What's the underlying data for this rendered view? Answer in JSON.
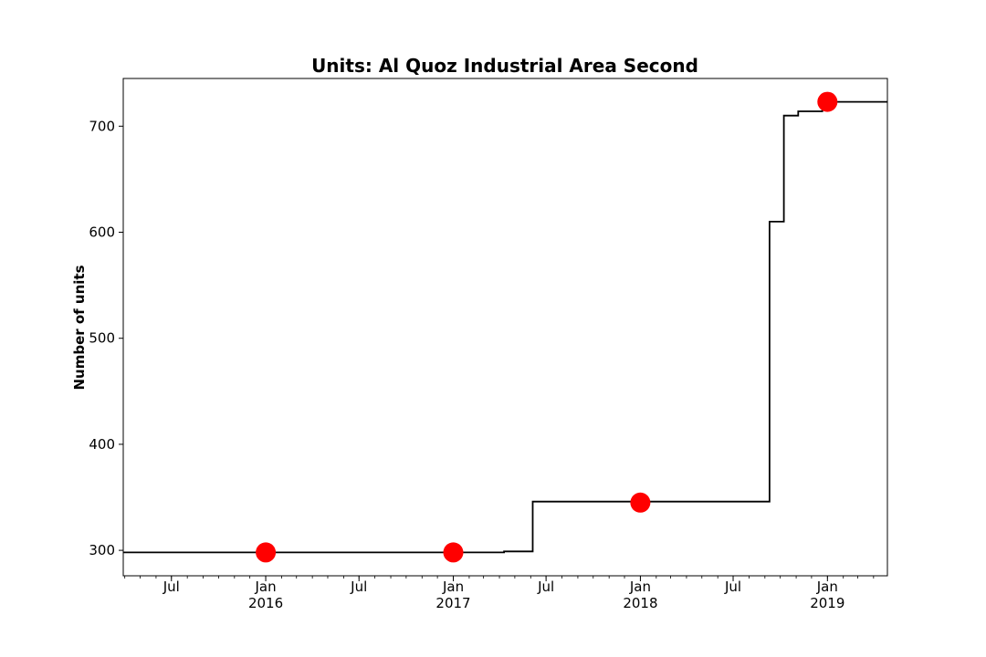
{
  "chart_data": {
    "type": "line",
    "title": "Units: Al Quoz Industrial Area Second",
    "xlabel": "",
    "ylabel": "Number of units",
    "xlim": [
      "2015-03-29",
      "2019-04-28"
    ],
    "ylim": [
      276,
      745
    ],
    "y_ticks": [
      300,
      400,
      500,
      600,
      700
    ],
    "x_major_ticks": [
      {
        "date": "2015-07-01",
        "label": "Jul",
        "sublabel": ""
      },
      {
        "date": "2016-01-01",
        "label": "Jan",
        "sublabel": "2016"
      },
      {
        "date": "2016-07-01",
        "label": "Jul",
        "sublabel": ""
      },
      {
        "date": "2017-01-01",
        "label": "Jan",
        "sublabel": "2017"
      },
      {
        "date": "2017-07-01",
        "label": "Jul",
        "sublabel": ""
      },
      {
        "date": "2018-01-01",
        "label": "Jan",
        "sublabel": "2018"
      },
      {
        "date": "2018-07-01",
        "label": "Jul",
        "sublabel": ""
      },
      {
        "date": "2019-01-01",
        "label": "Jan",
        "sublabel": "2019"
      }
    ],
    "grid": false,
    "series": [
      {
        "color": "#000000",
        "step": true,
        "points": [
          {
            "x": "2015-03-29",
            "y": 298
          },
          {
            "x": "2017-04-10",
            "y": 299
          },
          {
            "x": "2017-06-05",
            "y": 346
          },
          {
            "x": "2018-09-10",
            "y": 610
          },
          {
            "x": "2018-10-08",
            "y": 710
          },
          {
            "x": "2018-11-05",
            "y": 714
          },
          {
            "x": "2018-12-22",
            "y": 723
          },
          {
            "x": "2019-04-28",
            "y": 723
          }
        ]
      },
      {
        "color": "#ff0000",
        "marker": "circle",
        "points": [
          {
            "x": "2016-01-01",
            "y": 298
          },
          {
            "x": "2017-01-01",
            "y": 298
          },
          {
            "x": "2018-01-01",
            "y": 345
          },
          {
            "x": "2019-01-01",
            "y": 723
          }
        ]
      }
    ]
  }
}
